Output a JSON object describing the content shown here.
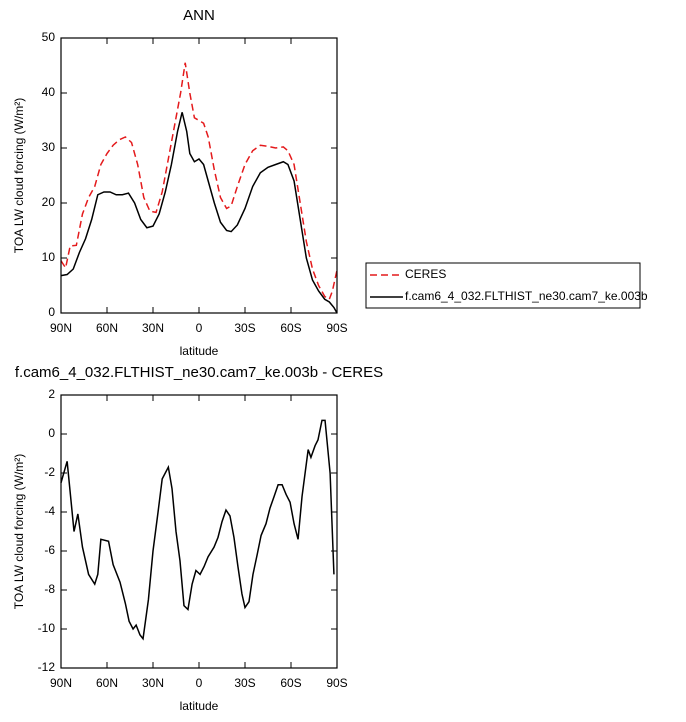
{
  "chart_data": [
    {
      "type": "line",
      "title": "ANN",
      "x_label": "latitude",
      "y_label": "TOA LW cloud forcing (W/m²)",
      "xlim": [
        90,
        -90
      ],
      "ylim": [
        0,
        50
      ],
      "xticks": [
        {
          "value": 90,
          "label": "90N"
        },
        {
          "value": 60,
          "label": "60N"
        },
        {
          "value": 30,
          "label": "30N"
        },
        0,
        {
          "value": -30,
          "label": "30S"
        },
        {
          "value": -60,
          "label": "60S"
        },
        {
          "value": -90,
          "label": "90S"
        }
      ],
      "yticks": [
        0,
        10,
        20,
        30,
        40,
        50
      ],
      "series": [
        {
          "name": "CERES",
          "color": "#e41a1c",
          "line_style": "dashed",
          "x": [
            90,
            87,
            84,
            80,
            76,
            72,
            68,
            64,
            60,
            56,
            52,
            48,
            44,
            40,
            36,
            32,
            28,
            24,
            20,
            16,
            12,
            9,
            6,
            3,
            0,
            -3,
            -6,
            -10,
            -14,
            -18,
            -21,
            -25,
            -30,
            -35,
            -40,
            -45,
            -50,
            -55,
            -58,
            -62,
            -66,
            -70,
            -74,
            -78,
            -82,
            -85,
            -87,
            -90
          ],
          "values": [
            9.5,
            8.2,
            12.2,
            12.3,
            18,
            21,
            23,
            27,
            29,
            30.5,
            31.5,
            32,
            31,
            27,
            21,
            18.5,
            18.3,
            22,
            28,
            34,
            40,
            45.5,
            40,
            35.5,
            35,
            34.5,
            32,
            26,
            21,
            19,
            19.5,
            23,
            27,
            29.5,
            30.5,
            30.3,
            30,
            30.2,
            29.5,
            27,
            20,
            13,
            8,
            5,
            3,
            2.5,
            4,
            7.8
          ]
        },
        {
          "name": "f.cam6_4_032.FLTHIST_ne30.cam7_ke.003b",
          "color": "#000000",
          "line_style": "solid",
          "x": [
            90,
            86,
            82,
            78,
            74,
            70,
            66,
            62,
            58,
            54,
            50,
            46,
            42,
            38,
            34,
            30,
            26,
            22,
            18,
            14,
            11,
            8,
            6,
            3,
            0,
            -3,
            -6,
            -10,
            -14,
            -18,
            -21,
            -25,
            -30,
            -35,
            -40,
            -45,
            -50,
            -55,
            -58,
            -62,
            -66,
            -70,
            -74,
            -78,
            -82,
            -85,
            -88,
            -90
          ],
          "values": [
            6.8,
            7,
            8,
            11,
            13.5,
            17,
            21.5,
            22,
            22,
            21.5,
            21.5,
            21.8,
            20,
            17,
            15.5,
            15.8,
            18,
            22,
            27,
            33,
            36.5,
            33,
            29,
            27.5,
            28,
            27,
            24,
            20,
            16.5,
            15,
            14.8,
            16,
            19,
            23,
            25.5,
            26.5,
            27,
            27.5,
            27,
            24,
            17,
            10,
            6,
            4,
            2.5,
            2,
            1,
            0
          ]
        }
      ]
    },
    {
      "type": "line",
      "title": "f.cam6_4_032.FLTHIST_ne30.cam7_ke.003b - CERES",
      "x_label": "latitude",
      "y_label": "TOA LW cloud forcing (W/m²)",
      "xlim": [
        90,
        -90
      ],
      "ylim": [
        -12,
        2
      ],
      "xticks": [
        {
          "value": 90,
          "label": "90N"
        },
        {
          "value": 60,
          "label": "60N"
        },
        {
          "value": 30,
          "label": "30N"
        },
        0,
        {
          "value": -30,
          "label": "30S"
        },
        {
          "value": -60,
          "label": "60S"
        },
        {
          "value": -90,
          "label": "90S"
        }
      ],
      "yticks": [
        -12,
        -10,
        -8,
        -6,
        -4,
        -2,
        0,
        2
      ],
      "color": "#000000",
      "x": [
        90,
        86,
        81.5,
        79,
        76,
        72,
        68,
        66,
        64,
        59,
        56,
        51.5,
        48,
        45.6,
        43,
        41,
        38.5,
        36.5,
        33,
        30,
        26.7,
        24,
        20,
        17.6,
        15,
        12.4,
        9.8,
        7.2,
        4.5,
        2,
        -0.7,
        -3.3,
        -5.9,
        -9.8,
        -12.4,
        -15,
        -17.6,
        -20.2,
        -22.8,
        -25.4,
        -28,
        -30,
        -32.6,
        -35.2,
        -37.9,
        -40.5,
        -43.7,
        -46.3,
        -49,
        -51.6,
        -54.2,
        -56.8,
        -59.4,
        -62,
        -64.6,
        -67.2,
        -71.2,
        -73,
        -75.7,
        -77.6,
        -80.2,
        -82.2,
        -85.5,
        -88
      ],
      "values": [
        -2.5,
        -1.4,
        -5,
        -4.1,
        -5.8,
        -7.2,
        -7.7,
        -7.2,
        -5.4,
        -5.5,
        -6.7,
        -7.6,
        -8.7,
        -9.6,
        -10,
        -9.8,
        -10.3,
        -10.5,
        -8.5,
        -6,
        -4,
        -2.3,
        -1.7,
        -2.8,
        -5,
        -6.5,
        -8.8,
        -9,
        -7.7,
        -7,
        -7.2,
        -6.8,
        -6.3,
        -5.8,
        -5.3,
        -4.5,
        -3.9,
        -4.2,
        -5.3,
        -6.8,
        -8.2,
        -8.9,
        -8.6,
        -7.2,
        -6.2,
        -5.2,
        -4.6,
        -3.8,
        -3.2,
        -2.6,
        -2.6,
        -3.1,
        -3.5,
        -4.6,
        -5.4,
        -3.2,
        -0.8,
        -1.2,
        -0.6,
        -0.3,
        0.7,
        0.7,
        -2,
        -7.2
      ]
    }
  ]
}
